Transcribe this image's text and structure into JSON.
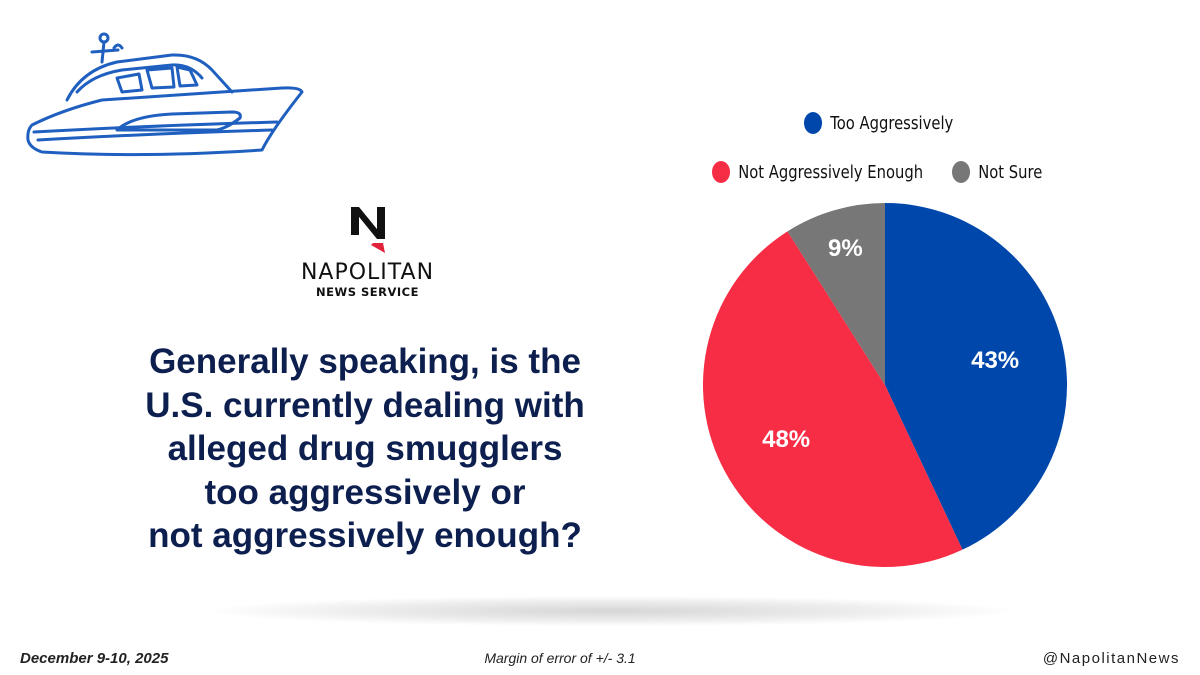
{
  "brand": {
    "logo_letter": "N",
    "name": "NAPOLITAN",
    "subtitle": "NEWS SERVICE"
  },
  "question_lines": [
    "Generally speaking, is the",
    "U.S. currently dealing with",
    "alleged drug smugglers",
    "too aggressively or",
    "not aggressively enough?"
  ],
  "colors": {
    "blue": "#0047ab",
    "red": "#f62d44",
    "gray": "#777777",
    "question_text": "#0d1f4f",
    "boat_stroke": "#1f5fbf"
  },
  "chart_data": {
    "type": "pie",
    "title": "",
    "legend_position": "top",
    "slices": [
      {
        "label": "Too Aggressively",
        "value": 43,
        "display": "43%",
        "color": "#0047ab"
      },
      {
        "label": "Not Aggressively Enough",
        "value": 48,
        "display": "48%",
        "color": "#f62d44"
      },
      {
        "label": "Not Sure",
        "value": 9,
        "display": "9%",
        "color": "#777777"
      }
    ]
  },
  "footer": {
    "date": "December 9-10, 2025",
    "margin_of_error": "Margin of error of +/- 3.1",
    "handle": "@NapolitanNews"
  },
  "decoration": {
    "boat_icon": "boat-icon"
  }
}
